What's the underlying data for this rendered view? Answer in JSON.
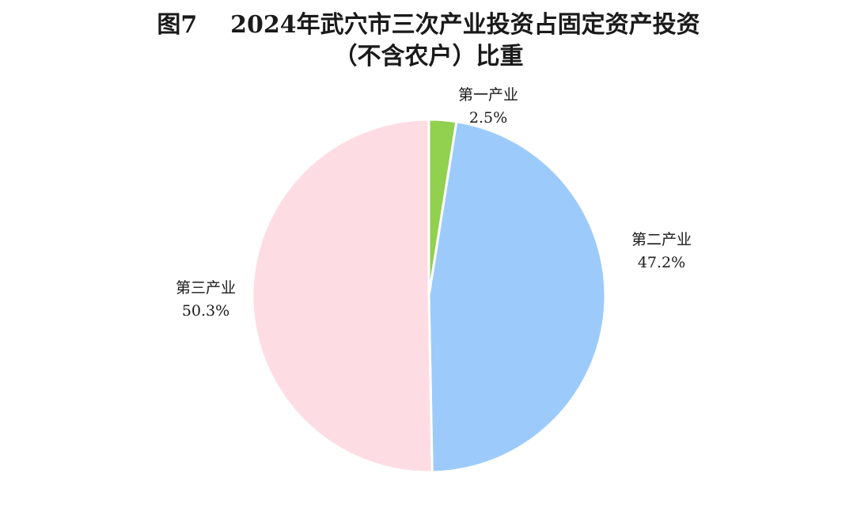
{
  "chart_data": {
    "type": "pie",
    "title": "图7    2024年武穴市三次产业投资占固定资产投资",
    "subtitle": "（不含农户）比重",
    "slices": [
      {
        "name": "第一产业",
        "value": 2.5,
        "label": "2.5%",
        "color": "#92d050"
      },
      {
        "name": "第二产业",
        "value": 47.2,
        "label": "47.2%",
        "color": "#9ccbfb"
      },
      {
        "name": "第三产业",
        "value": 50.3,
        "label": "50.3%",
        "color": "#fddde3"
      }
    ]
  }
}
